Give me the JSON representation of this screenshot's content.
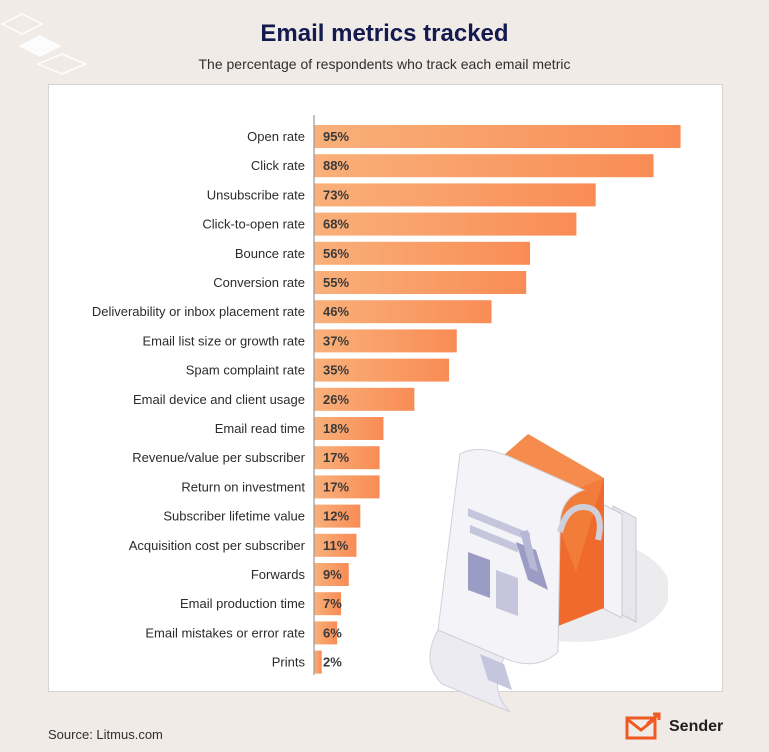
{
  "header": {
    "title": "Email metrics tracked",
    "subtitle": "The percentage of respondents who track each email metric"
  },
  "footer": {
    "source": "Source: Litmus.com",
    "brand": "Sender"
  },
  "colors": {
    "bar": "#f98c55",
    "bar_light": "#f9b07a",
    "accent": "#ef5a24",
    "title": "#121a4f"
  },
  "chart_data": {
    "type": "bar",
    "orientation": "horizontal",
    "title": "Email metrics tracked",
    "subtitle": "The percentage of respondents who track each email metric",
    "categories": [
      "Open rate",
      "Click rate",
      "Unsubscribe rate",
      "Click-to-open rate",
      "Bounce rate",
      "Conversion rate",
      "Deliverability or inbox placement rate",
      "Email list size or growth rate",
      "Spam complaint rate",
      "Email device and client usage",
      "Email read time",
      "Revenue/value per subscriber",
      "Return on investment",
      "Subscriber lifetime value",
      "Acquisition cost per subscriber",
      "Forwards",
      "Email production time",
      "Email mistakes or error rate",
      "Prints"
    ],
    "values": [
      95,
      88,
      73,
      68,
      56,
      55,
      46,
      37,
      35,
      26,
      18,
      17,
      17,
      12,
      11,
      9,
      7,
      6,
      2
    ],
    "labels": [
      "95%",
      "88%",
      "73%",
      "68%",
      "56%",
      "55%",
      "46%",
      "37%",
      "35%",
      "26%",
      "18%",
      "17%",
      "17%",
      "12%",
      "11%",
      "9%",
      "7%",
      "6%",
      "2%"
    ],
    "unit": "%",
    "xlim": [
      0,
      100
    ],
    "grid": false,
    "legend": "none"
  }
}
